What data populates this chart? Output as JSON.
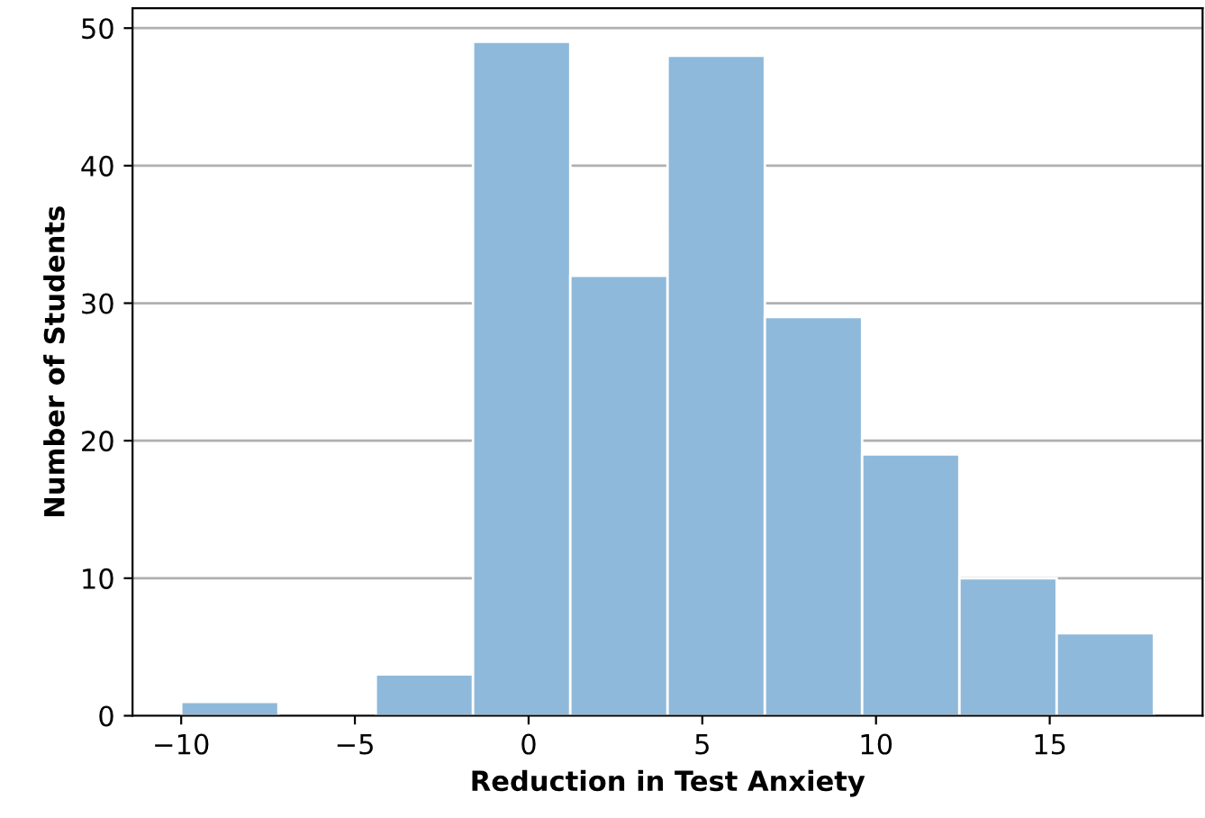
{
  "chart_data": {
    "type": "histogram",
    "xlabel": "Reduction in Test Anxiety",
    "ylabel": "Number of Students",
    "bins": [
      -10,
      -7.2,
      -4.4,
      -1.6,
      1.2,
      4,
      6.8,
      9.6,
      12.4,
      15.2,
      18
    ],
    "values": [
      1,
      0,
      3,
      49,
      32,
      48,
      29,
      19,
      10,
      6
    ],
    "color": "#8fb9da",
    "xlim": [
      -11.4,
      19.4
    ],
    "xticks": [
      {
        "value": -10,
        "label": "−10"
      },
      {
        "value": -5,
        "label": "−5"
      },
      0,
      5,
      10,
      15
    ],
    "ylim": [
      0,
      51.45
    ],
    "yticks": [
      0,
      10,
      20,
      30,
      40,
      50
    ],
    "grid": "y"
  }
}
